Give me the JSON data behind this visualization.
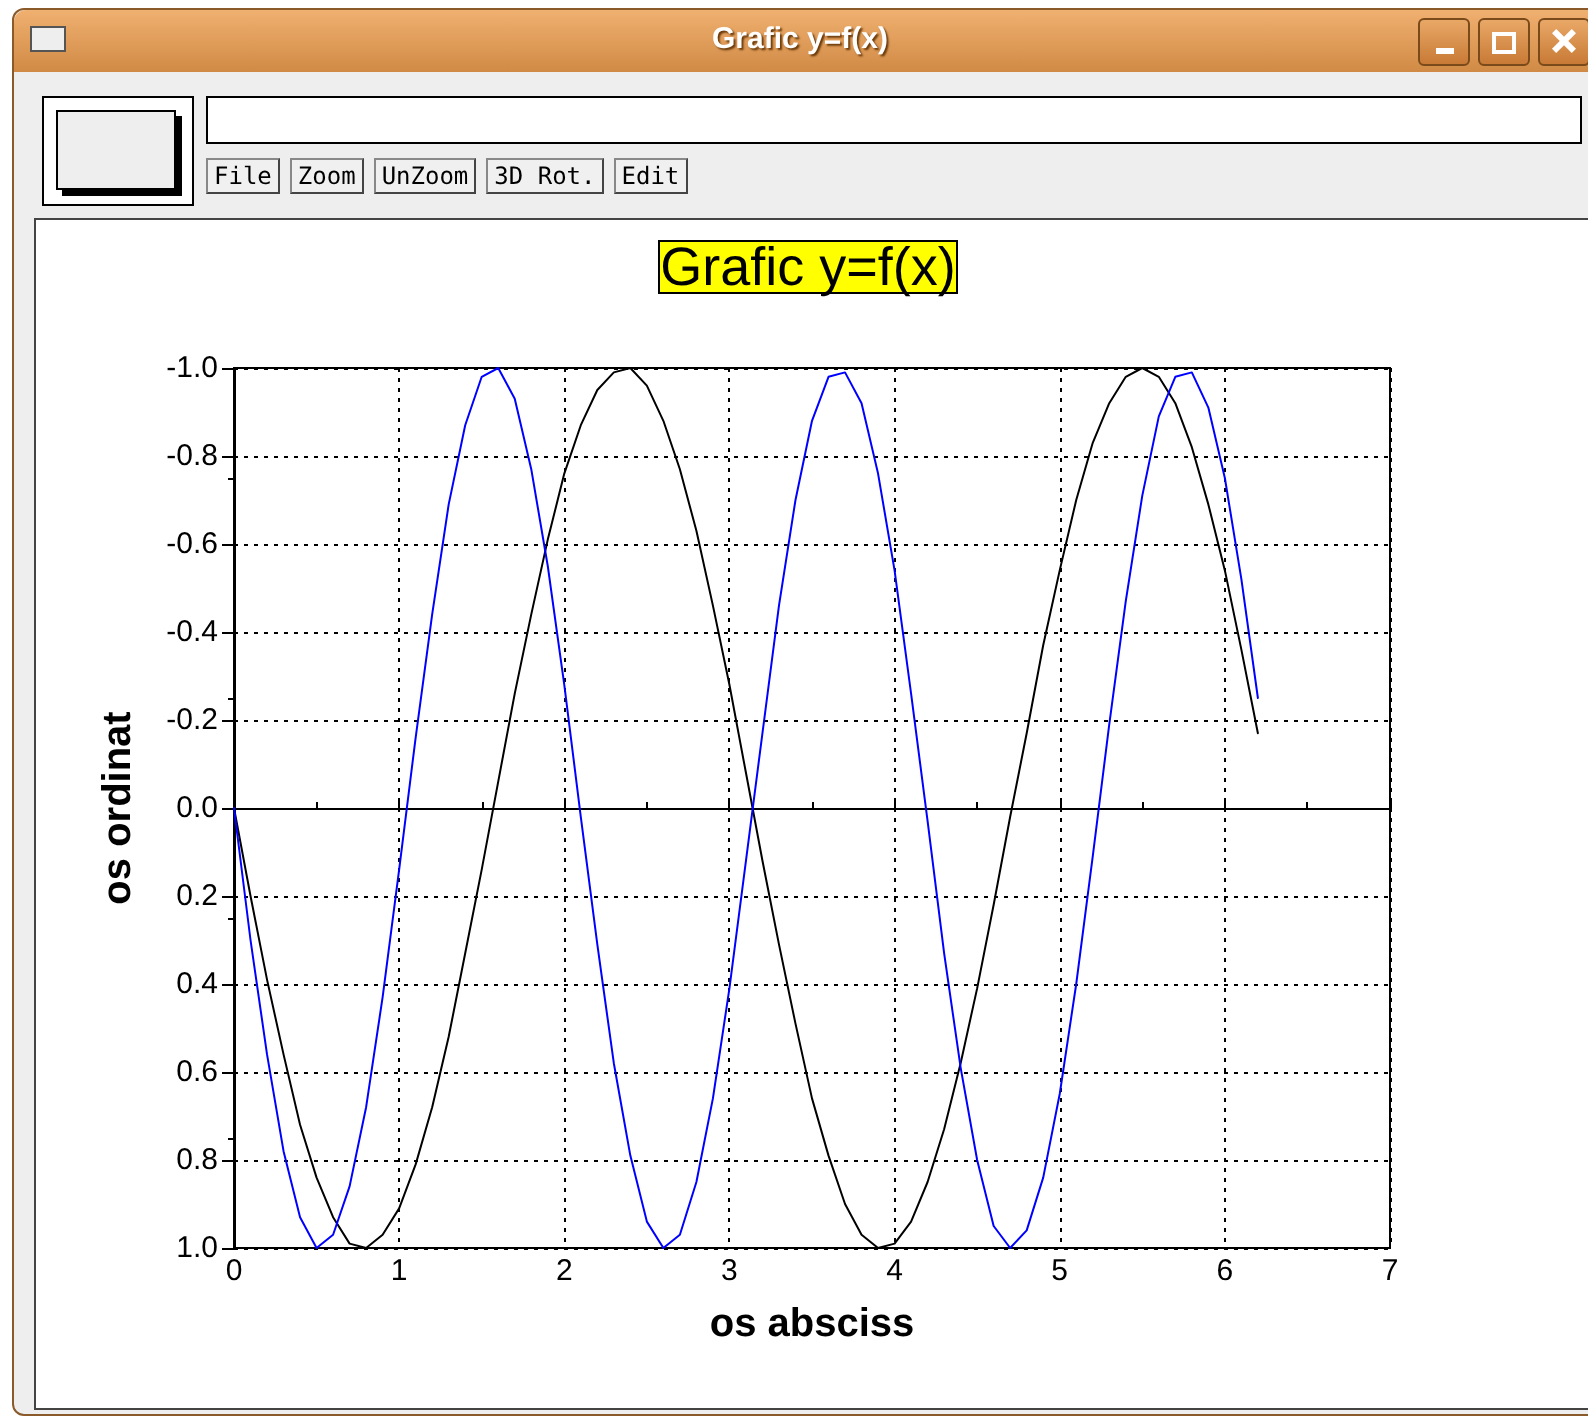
{
  "chart_data": {
    "type": "line",
    "title": "Grafic y=f(x)",
    "xlabel": "os absciss",
    "ylabel": "os ordinat",
    "annotations": [
      "Grafic y=f(x)",
      "File",
      "Zoom",
      "UnZoom",
      "3D Rot.",
      "Edit"
    ],
    "x": [
      0,
      0.1,
      0.2,
      0.3,
      0.4,
      0.5,
      0.6,
      0.7,
      0.8,
      0.9,
      1,
      1.1,
      1.2,
      1.3,
      1.4,
      1.5,
      1.6,
      1.7,
      1.8,
      1.9,
      2,
      2.1,
      2.2,
      2.3,
      2.4,
      2.5,
      2.6,
      2.7,
      2.8,
      2.9,
      3,
      3.1,
      3.2,
      3.3,
      3.4,
      3.5,
      3.6,
      3.7,
      3.8,
      3.9,
      4,
      4.1,
      4.2,
      4.3,
      4.4,
      4.5,
      4.6,
      4.7,
      4.8,
      4.9,
      5,
      5.1,
      5.2,
      5.3,
      5.4,
      5.5,
      5.6,
      5.7,
      5.8,
      5.9,
      6,
      6.1,
      6.2
    ],
    "series": [
      {
        "color": "#000000",
        "values": [
          0,
          0.2,
          0.39,
          0.56,
          0.72,
          0.84,
          0.93,
          0.99,
          1.0,
          0.97,
          0.91,
          0.81,
          0.68,
          0.52,
          0.33,
          0.14,
          -0.06,
          -0.26,
          -0.44,
          -0.61,
          -0.76,
          -0.87,
          -0.95,
          -0.99,
          -1.0,
          -0.96,
          -0.88,
          -0.77,
          -0.63,
          -0.46,
          -0.28,
          -0.08,
          0.12,
          0.31,
          0.49,
          0.66,
          0.79,
          0.9,
          0.97,
          1.0,
          0.99,
          0.94,
          0.85,
          0.73,
          0.58,
          0.41,
          0.22,
          0.02,
          -0.17,
          -0.37,
          -0.54,
          -0.7,
          -0.83,
          -0.92,
          -0.98,
          -1.0,
          -0.98,
          -0.92,
          -0.82,
          -0.69,
          -0.54,
          -0.36,
          -0.17
        ]
      },
      {
        "color": "#0000ff",
        "values": [
          0,
          0.3,
          0.56,
          0.78,
          0.93,
          1.0,
          0.97,
          0.86,
          0.68,
          0.43,
          0.14,
          -0.16,
          -0.44,
          -0.69,
          -0.87,
          -0.98,
          -1.0,
          -0.93,
          -0.77,
          -0.55,
          -0.28,
          0.02,
          0.31,
          0.58,
          0.79,
          0.94,
          1.0,
          0.97,
          0.85,
          0.66,
          0.41,
          0.12,
          -0.17,
          -0.46,
          -0.7,
          -0.88,
          -0.98,
          -0.99,
          -0.92,
          -0.76,
          -0.54,
          -0.26,
          0.03,
          0.33,
          0.59,
          0.8,
          0.95,
          1.0,
          0.96,
          0.84,
          0.65,
          0.4,
          0.11,
          -0.19,
          -0.47,
          -0.71,
          -0.89,
          -0.98,
          -0.99,
          -0.91,
          -0.75,
          -0.52,
          -0.25
        ]
      }
    ],
    "xlim": [
      0,
      7
    ],
    "xticks": [
      0,
      1,
      2,
      3,
      4,
      5,
      6,
      7
    ],
    "ylim": [
      1,
      -1
    ],
    "yticks": [
      {
        "value": -1,
        "label": "-1.0"
      },
      {
        "value": -0.8,
        "label": "-0.8"
      },
      {
        "value": -0.6,
        "label": "-0.6"
      },
      {
        "value": -0.4,
        "label": "-0.4"
      },
      {
        "value": -0.2,
        "label": "-0.2"
      },
      {
        "value": 0,
        "label": "0.0"
      },
      {
        "value": 0.2,
        "label": "0.2"
      },
      {
        "value": 0.4,
        "label": "0.4"
      },
      {
        "value": 0.6,
        "label": "0.6"
      },
      {
        "value": 0.8,
        "label": "0.8"
      },
      {
        "value": 1,
        "label": "1.0"
      }
    ],
    "grid": true,
    "marker": "none",
    "line_style": "solid"
  }
}
